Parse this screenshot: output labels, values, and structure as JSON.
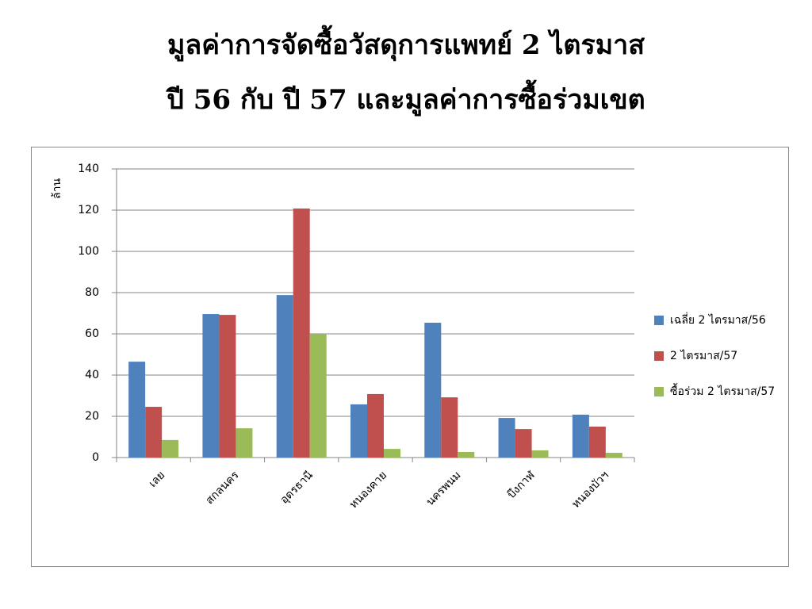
{
  "chart_data": {
    "type": "bar",
    "title": [
      "มูลค่าการจัดซื้อวัสดุการแพทย์ 2 ไตรมาส",
      "ปี 56 กับ ปี 57 และมูลค่าการซื้อร่วมเขต"
    ],
    "y_label": "ล้าน",
    "categories": [
      "เลย",
      "สกลนคร",
      "อุดรธานี",
      "หนองคาย",
      "นครพนม",
      "บึงกาฬ",
      "หนองบัวฯ"
    ],
    "series": [
      {
        "name": "เฉลี่ย 2 ไตรมาส/56",
        "color": "#4f81bd",
        "values": [
          46.5,
          69.6,
          78.8,
          25.8,
          65.4,
          19.2,
          20.8
        ]
      },
      {
        "name": "2 ไตรมาส/57",
        "color": "#c0504d",
        "values": [
          24.6,
          69.2,
          120.8,
          30.8,
          29.2,
          13.8,
          15
        ]
      },
      {
        "name": "ซื้อร่วม 2 ไตรมาส/57",
        "color": "#9bbb59",
        "values": [
          8.5,
          14.2,
          60,
          4.2,
          2.7,
          3.5,
          2.3
        ]
      }
    ],
    "ylim": [
      0,
      140
    ],
    "yticks": [
      0,
      20,
      40,
      60,
      80,
      100,
      120,
      140
    ],
    "grid": true,
    "legend": "right"
  }
}
